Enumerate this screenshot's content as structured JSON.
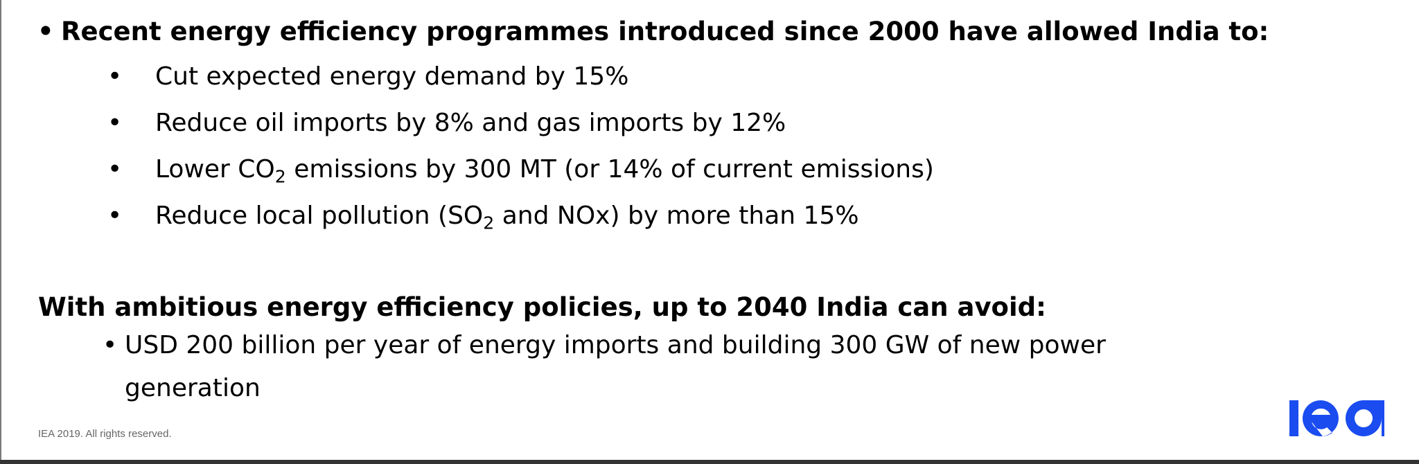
{
  "slide": {
    "heading1": "Recent energy efficiency programmes introduced since 2000 have allowed India to:",
    "bullet_char": "•",
    "items1": [
      {
        "pre": "Cut expected energy demand by 15%"
      },
      {
        "pre": "Reduce oil imports by 8% and gas imports by 12%"
      },
      {
        "pre": "Lower CO",
        "sub": "2",
        "post": " emissions by 300 MT (or 14% of current emissions)"
      },
      {
        "pre": "Reduce local pollution (SO",
        "sub": "2",
        "post": " and NOx) by more than 15%"
      }
    ],
    "heading2": "With ambitious energy efficiency policies, up to 2040 India can avoid:",
    "items2": [
      {
        "line1": "USD 200 billion per year of energy imports and building 300 GW of new power",
        "line2": "generation"
      }
    ],
    "footer": "IEA 2019. All rights reserved.",
    "logo_text": "iea",
    "logo_color": "#1a4cf0"
  }
}
